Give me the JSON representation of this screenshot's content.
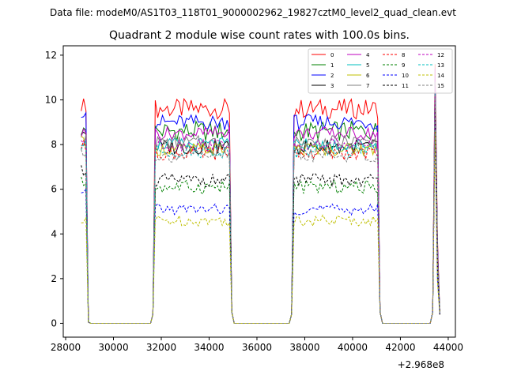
{
  "chart_data": {
    "type": "line",
    "suptitle": "Data file: modeM0/AS1T03_118T01_9000002962_19827cztM0_level2_quad_clean.evt",
    "title": "Quadrant 2 module wise count rates with 100.0s bins.",
    "xlabel": "",
    "ylabel": "",
    "x_offset_label": "+2.968e8",
    "xlim": [
      27900,
      44300
    ],
    "ylim": [
      -0.62,
      12.42
    ],
    "x_ticks": [
      28000,
      30000,
      32000,
      34000,
      36000,
      38000,
      40000,
      42000,
      44000
    ],
    "x_tick_labels": [
      "28000",
      "30000",
      "32000",
      "34000",
      "36000",
      "38000",
      "40000",
      "42000",
      "44000"
    ],
    "y_ticks": [
      0,
      2,
      4,
      6,
      8,
      10,
      12
    ],
    "y_tick_labels": [
      "0",
      "2",
      "4",
      "6",
      "8",
      "10",
      "12"
    ],
    "grid": false,
    "legend_position": "top-right",
    "segments": [
      {
        "start": 28650,
        "end": 28950,
        "nbins": 4
      },
      {
        "start": 31650,
        "end": 34950,
        "nbins": 34
      },
      {
        "start": 37450,
        "end": 41150,
        "nbins": 38
      },
      {
        "start": 43350,
        "end": 43650,
        "nbins": 4
      }
    ],
    "series": [
      {
        "name": "0",
        "color": "#ff0000",
        "dash": "solid",
        "level": 9.6,
        "noise": 0.45,
        "start_value": 9.8,
        "spike": 11.6
      },
      {
        "name": "1",
        "color": "#008000",
        "dash": "solid",
        "level": 8.6,
        "noise": 0.45,
        "start_value": 8.6,
        "spike": 10.9
      },
      {
        "name": "2",
        "color": "#0000ff",
        "dash": "solid",
        "level": 9.0,
        "noise": 0.35,
        "start_value": 9.5,
        "spike": 10.7
      },
      {
        "name": "3",
        "color": "#000000",
        "dash": "solid",
        "level": 7.9,
        "noise": 0.35,
        "start_value": 8.6,
        "spike": 10.2
      },
      {
        "name": "4",
        "color": "#bf00bf",
        "dash": "solid",
        "level": 8.5,
        "noise": 0.3,
        "start_value": 8.5,
        "spike": 11.4
      },
      {
        "name": "5",
        "color": "#00bfbf",
        "dash": "solid",
        "level": 8.0,
        "noise": 0.3,
        "start_value": 8.2,
        "spike": 10.6
      },
      {
        "name": "6",
        "color": "#bfbf00",
        "dash": "solid",
        "level": 7.8,
        "noise": 0.3,
        "start_value": 8.1,
        "spike": 10.4
      },
      {
        "name": "7",
        "color": "#808080",
        "dash": "solid",
        "level": 8.1,
        "noise": 0.3,
        "start_value": 8.2,
        "spike": 10.8
      },
      {
        "name": "8",
        "color": "#ff0000",
        "dash": "dashed",
        "level": 7.6,
        "noise": 0.3,
        "start_value": 7.9,
        "spike": 10.1
      },
      {
        "name": "9",
        "color": "#008000",
        "dash": "dashed",
        "level": 6.1,
        "noise": 0.3,
        "start_value": 6.3,
        "spike": 9.4
      },
      {
        "name": "10",
        "color": "#0000ff",
        "dash": "dashed",
        "level": 5.1,
        "noise": 0.25,
        "start_value": 5.7,
        "spike": 9.0
      },
      {
        "name": "11",
        "color": "#000000",
        "dash": "dashed",
        "level": 6.4,
        "noise": 0.3,
        "start_value": 6.9,
        "spike": 9.8
      },
      {
        "name": "12",
        "color": "#bf00bf",
        "dash": "dashed",
        "level": 8.0,
        "noise": 0.3,
        "start_value": 8.2,
        "spike": 10.6
      },
      {
        "name": "13",
        "color": "#00bfbf",
        "dash": "dashed",
        "level": 7.7,
        "noise": 0.3,
        "start_value": 7.9,
        "spike": 10.3
      },
      {
        "name": "14",
        "color": "#bfbf00",
        "dash": "dashed",
        "level": 4.6,
        "noise": 0.25,
        "start_value": 4.5,
        "spike": 8.6
      },
      {
        "name": "15",
        "color": "#808080",
        "dash": "dashed",
        "level": 7.5,
        "noise": 0.3,
        "start_value": 7.7,
        "spike": 10.2
      }
    ]
  }
}
